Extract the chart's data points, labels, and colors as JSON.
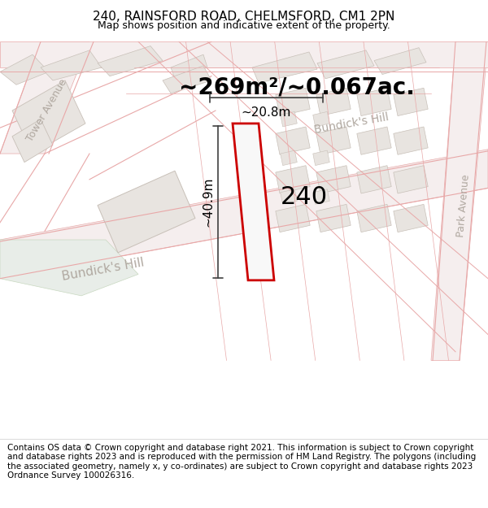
{
  "title": "240, RAINSFORD ROAD, CHELMSFORD, CM1 2PN",
  "subtitle": "Map shows position and indicative extent of the property.",
  "area_text": "~269m²/~0.067ac.",
  "number_label": "240",
  "dim_width": "~20.8m",
  "dim_height": "~40.9m",
  "footer": "Contains OS data © Crown copyright and database right 2021. This information is subject to Crown copyright and database rights 2023 and is reproduced with the permission of HM Land Registry. The polygons (including the associated geometry, namely x, y co-ordinates) are subject to Crown copyright and database rights 2023 Ordnance Survey 100026316.",
  "map_bg": "#f2f0ed",
  "road_line_color": "#e8a8a8",
  "building_fill": "#e8e4e0",
  "building_edge": "#c8c0b8",
  "plot_fill": "#f8f8f8",
  "plot_outline": "#cc0000",
  "road_label_color": "#b0a8a0",
  "grass_fill": "#e8ede8",
  "title_fontsize": 11,
  "subtitle_fontsize": 9,
  "area_fontsize": 20,
  "number_fontsize": 22,
  "dim_fontsize": 11,
  "footer_fontsize": 7.5
}
